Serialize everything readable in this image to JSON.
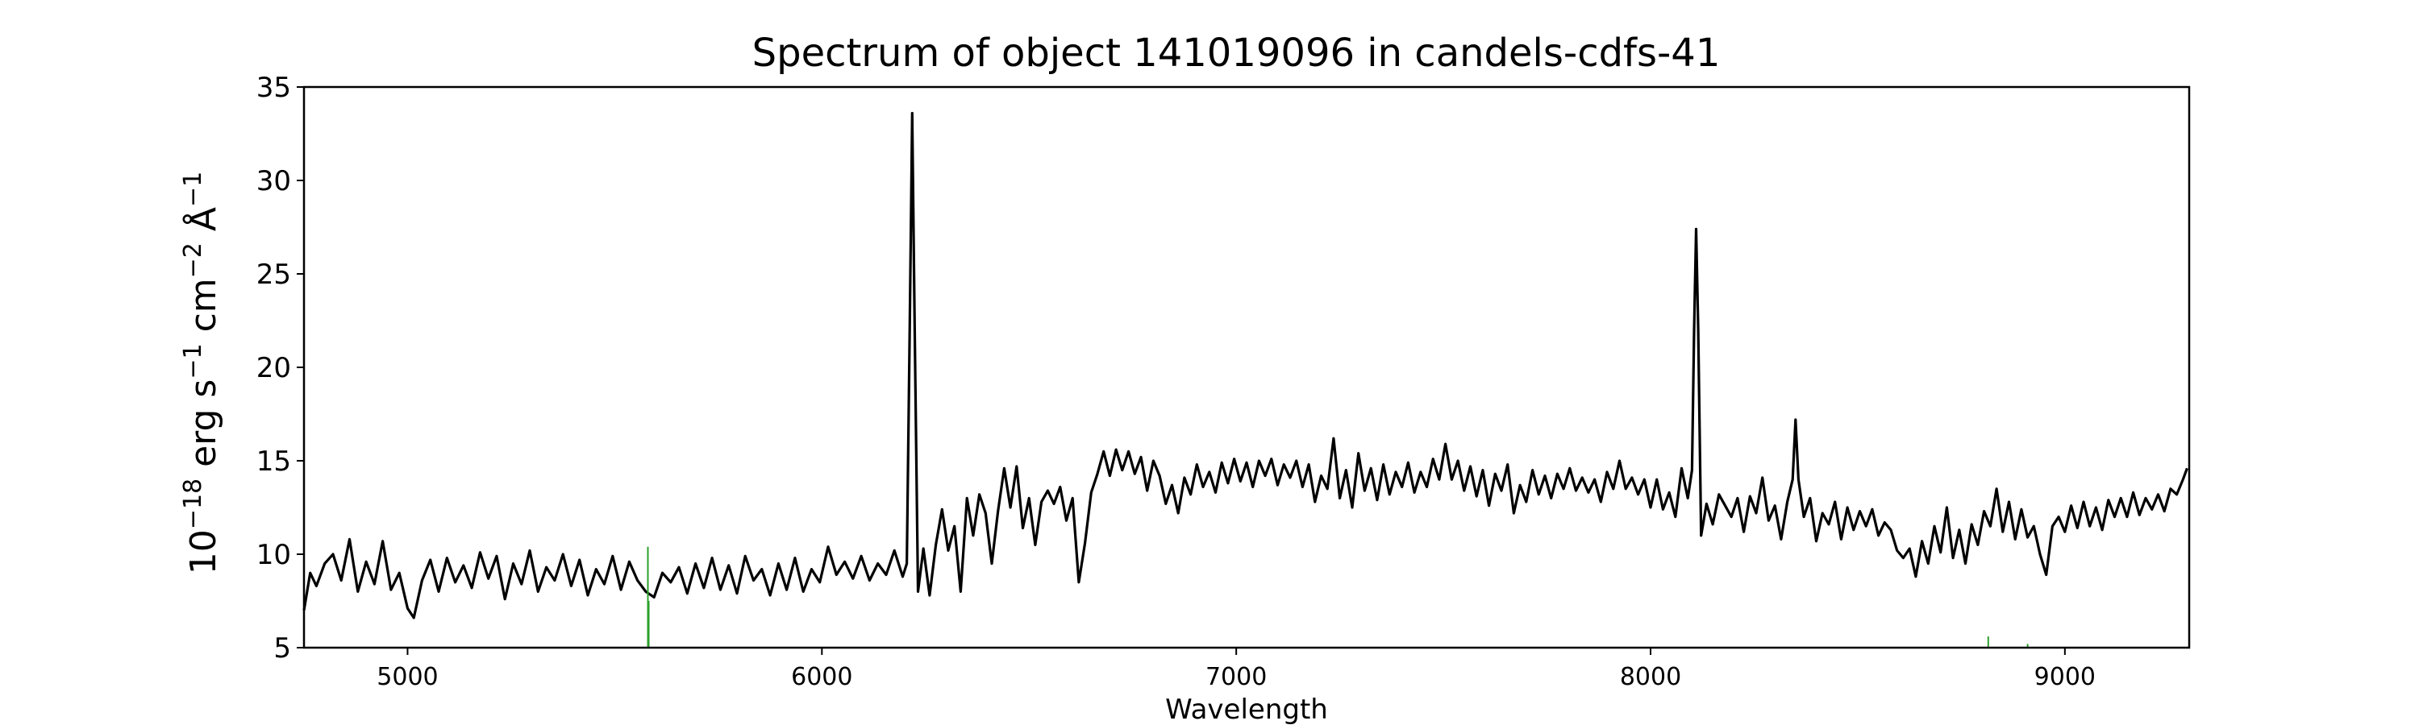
{
  "chart_data": {
    "type": "line",
    "title": "Spectrum of object 141019096 in candels-cdfs-41",
    "xlabel": "Wavelength",
    "ylabel": {
      "base": "10",
      "exp1": "−18",
      "t1": " erg s",
      "exp2": "−1",
      "t2": " cm",
      "exp3": "−2",
      "t3": " Å",
      "exp4": "−1"
    },
    "xlim": [
      4750,
      9300
    ],
    "ylim": [
      5,
      35
    ],
    "xticks": [
      5000,
      6000,
      7000,
      8000,
      9000
    ],
    "xtick_labels": [
      "5000",
      "6000",
      "7000",
      "8000",
      "9000"
    ],
    "yticks": [
      5,
      10,
      15,
      20,
      25,
      30,
      35
    ],
    "ytick_labels": [
      "5",
      "10",
      "15",
      "20",
      "25",
      "30",
      "35"
    ],
    "grid": false,
    "colors": {
      "spectrum": "#000000",
      "sky_lines": "#2ca02c"
    },
    "series": [
      {
        "color": "#000000",
        "points": [
          [
            4750,
            7.0
          ],
          [
            4765,
            9.0
          ],
          [
            4780,
            8.3
          ],
          [
            4800,
            9.5
          ],
          [
            4820,
            10.0
          ],
          [
            4840,
            8.6
          ],
          [
            4860,
            10.8
          ],
          [
            4880,
            8.0
          ],
          [
            4900,
            9.6
          ],
          [
            4920,
            8.4
          ],
          [
            4940,
            10.7
          ],
          [
            4960,
            8.1
          ],
          [
            4980,
            9.0
          ],
          [
            5000,
            7.1
          ],
          [
            5015,
            6.6
          ],
          [
            5035,
            8.6
          ],
          [
            5055,
            9.7
          ],
          [
            5075,
            8.0
          ],
          [
            5095,
            9.8
          ],
          [
            5115,
            8.5
          ],
          [
            5135,
            9.4
          ],
          [
            5155,
            8.2
          ],
          [
            5175,
            10.1
          ],
          [
            5195,
            8.7
          ],
          [
            5215,
            9.9
          ],
          [
            5235,
            7.6
          ],
          [
            5255,
            9.5
          ],
          [
            5275,
            8.4
          ],
          [
            5295,
            10.2
          ],
          [
            5315,
            8.0
          ],
          [
            5335,
            9.3
          ],
          [
            5355,
            8.6
          ],
          [
            5375,
            10.0
          ],
          [
            5395,
            8.3
          ],
          [
            5415,
            9.7
          ],
          [
            5435,
            7.8
          ],
          [
            5455,
            9.2
          ],
          [
            5475,
            8.4
          ],
          [
            5495,
            9.9
          ],
          [
            5515,
            8.1
          ],
          [
            5535,
            9.6
          ],
          [
            5555,
            8.6
          ],
          [
            5575,
            8.0
          ],
          [
            5595,
            7.7
          ],
          [
            5615,
            9.0
          ],
          [
            5635,
            8.5
          ],
          [
            5655,
            9.3
          ],
          [
            5675,
            7.9
          ],
          [
            5695,
            9.5
          ],
          [
            5715,
            8.2
          ],
          [
            5735,
            9.8
          ],
          [
            5755,
            8.1
          ],
          [
            5775,
            9.4
          ],
          [
            5795,
            7.9
          ],
          [
            5815,
            9.9
          ],
          [
            5835,
            8.6
          ],
          [
            5855,
            9.2
          ],
          [
            5875,
            7.8
          ],
          [
            5895,
            9.5
          ],
          [
            5915,
            8.1
          ],
          [
            5935,
            9.8
          ],
          [
            5955,
            8.0
          ],
          [
            5975,
            9.2
          ],
          [
            5995,
            8.5
          ],
          [
            6015,
            10.4
          ],
          [
            6035,
            8.9
          ],
          [
            6055,
            9.6
          ],
          [
            6075,
            8.7
          ],
          [
            6095,
            9.9
          ],
          [
            6115,
            8.6
          ],
          [
            6135,
            9.5
          ],
          [
            6155,
            8.9
          ],
          [
            6175,
            10.2
          ],
          [
            6195,
            8.8
          ],
          [
            6205,
            9.5
          ],
          [
            6212,
            22.0
          ],
          [
            6218,
            33.6
          ],
          [
            6224,
            22.0
          ],
          [
            6232,
            8.0
          ],
          [
            6245,
            10.3
          ],
          [
            6260,
            7.8
          ],
          [
            6275,
            10.5
          ],
          [
            6290,
            12.4
          ],
          [
            6305,
            10.2
          ],
          [
            6320,
            11.5
          ],
          [
            6335,
            8.0
          ],
          [
            6350,
            13.0
          ],
          [
            6365,
            11.0
          ],
          [
            6380,
            13.2
          ],
          [
            6395,
            12.2
          ],
          [
            6410,
            9.5
          ],
          [
            6425,
            12.3
          ],
          [
            6440,
            14.6
          ],
          [
            6455,
            12.5
          ],
          [
            6470,
            14.7
          ],
          [
            6485,
            11.4
          ],
          [
            6500,
            13.0
          ],
          [
            6515,
            10.5
          ],
          [
            6530,
            12.8
          ],
          [
            6545,
            13.4
          ],
          [
            6560,
            12.7
          ],
          [
            6575,
            13.6
          ],
          [
            6590,
            11.8
          ],
          [
            6605,
            13.0
          ],
          [
            6620,
            8.5
          ],
          [
            6635,
            10.6
          ],
          [
            6650,
            13.3
          ],
          [
            6665,
            14.3
          ],
          [
            6680,
            15.5
          ],
          [
            6695,
            14.2
          ],
          [
            6710,
            15.6
          ],
          [
            6725,
            14.5
          ],
          [
            6740,
            15.5
          ],
          [
            6755,
            14.3
          ],
          [
            6770,
            15.2
          ],
          [
            6785,
            13.4
          ],
          [
            6800,
            15.0
          ],
          [
            6815,
            14.2
          ],
          [
            6830,
            12.7
          ],
          [
            6845,
            13.7
          ],
          [
            6860,
            12.2
          ],
          [
            6875,
            14.1
          ],
          [
            6890,
            13.2
          ],
          [
            6905,
            14.8
          ],
          [
            6920,
            13.6
          ],
          [
            6935,
            14.4
          ],
          [
            6950,
            13.3
          ],
          [
            6965,
            14.9
          ],
          [
            6980,
            13.8
          ],
          [
            6995,
            15.1
          ],
          [
            7010,
            13.9
          ],
          [
            7025,
            14.9
          ],
          [
            7040,
            13.6
          ],
          [
            7055,
            15.0
          ],
          [
            7070,
            14.2
          ],
          [
            7085,
            15.1
          ],
          [
            7100,
            13.7
          ],
          [
            7115,
            14.8
          ],
          [
            7130,
            14.1
          ],
          [
            7145,
            15.0
          ],
          [
            7160,
            13.6
          ],
          [
            7175,
            14.8
          ],
          [
            7190,
            12.8
          ],
          [
            7205,
            14.2
          ],
          [
            7220,
            13.5
          ],
          [
            7235,
            16.2
          ],
          [
            7250,
            13.0
          ],
          [
            7265,
            14.5
          ],
          [
            7280,
            12.5
          ],
          [
            7295,
            15.4
          ],
          [
            7310,
            13.4
          ],
          [
            7325,
            14.6
          ],
          [
            7340,
            12.9
          ],
          [
            7355,
            14.8
          ],
          [
            7370,
            13.2
          ],
          [
            7385,
            14.4
          ],
          [
            7400,
            13.6
          ],
          [
            7415,
            14.9
          ],
          [
            7430,
            13.3
          ],
          [
            7445,
            14.4
          ],
          [
            7460,
            13.6
          ],
          [
            7475,
            15.1
          ],
          [
            7490,
            14.0
          ],
          [
            7505,
            15.9
          ],
          [
            7520,
            14.0
          ],
          [
            7535,
            15.0
          ],
          [
            7550,
            13.4
          ],
          [
            7565,
            14.7
          ],
          [
            7580,
            13.1
          ],
          [
            7595,
            14.5
          ],
          [
            7610,
            12.6
          ],
          [
            7625,
            14.3
          ],
          [
            7640,
            13.4
          ],
          [
            7655,
            14.8
          ],
          [
            7670,
            12.2
          ],
          [
            7685,
            13.7
          ],
          [
            7700,
            12.8
          ],
          [
            7715,
            14.5
          ],
          [
            7730,
            13.2
          ],
          [
            7745,
            14.2
          ],
          [
            7760,
            13.0
          ],
          [
            7775,
            14.3
          ],
          [
            7790,
            13.5
          ],
          [
            7805,
            14.6
          ],
          [
            7820,
            13.4
          ],
          [
            7835,
            14.1
          ],
          [
            7850,
            13.3
          ],
          [
            7865,
            14.0
          ],
          [
            7880,
            12.8
          ],
          [
            7895,
            14.4
          ],
          [
            7910,
            13.5
          ],
          [
            7925,
            15.0
          ],
          [
            7940,
            13.5
          ],
          [
            7955,
            14.1
          ],
          [
            7970,
            13.2
          ],
          [
            7985,
            14.0
          ],
          [
            8000,
            12.5
          ],
          [
            8015,
            14.0
          ],
          [
            8030,
            12.4
          ],
          [
            8045,
            13.3
          ],
          [
            8060,
            12.0
          ],
          [
            8075,
            14.6
          ],
          [
            8090,
            13.0
          ],
          [
            8100,
            14.5
          ],
          [
            8105,
            22.0
          ],
          [
            8110,
            27.4
          ],
          [
            8115,
            22.0
          ],
          [
            8122,
            11.0
          ],
          [
            8135,
            12.7
          ],
          [
            8150,
            11.6
          ],
          [
            8165,
            13.2
          ],
          [
            8180,
            12.6
          ],
          [
            8195,
            12.0
          ],
          [
            8210,
            13.0
          ],
          [
            8225,
            11.2
          ],
          [
            8240,
            13.1
          ],
          [
            8255,
            12.2
          ],
          [
            8270,
            14.1
          ],
          [
            8285,
            11.8
          ],
          [
            8300,
            12.6
          ],
          [
            8315,
            10.8
          ],
          [
            8330,
            12.8
          ],
          [
            8343,
            14.0
          ],
          [
            8350,
            17.2
          ],
          [
            8357,
            14.0
          ],
          [
            8370,
            12.0
          ],
          [
            8385,
            13.0
          ],
          [
            8400,
            10.7
          ],
          [
            8415,
            12.2
          ],
          [
            8430,
            11.6
          ],
          [
            8445,
            12.8
          ],
          [
            8460,
            10.8
          ],
          [
            8475,
            12.5
          ],
          [
            8490,
            11.3
          ],
          [
            8505,
            12.3
          ],
          [
            8520,
            11.5
          ],
          [
            8535,
            12.4
          ],
          [
            8550,
            11.0
          ],
          [
            8565,
            11.7
          ],
          [
            8580,
            11.3
          ],
          [
            8595,
            10.2
          ],
          [
            8610,
            9.8
          ],
          [
            8625,
            10.3
          ],
          [
            8640,
            8.8
          ],
          [
            8655,
            10.7
          ],
          [
            8670,
            9.5
          ],
          [
            8685,
            11.5
          ],
          [
            8700,
            10.1
          ],
          [
            8715,
            12.5
          ],
          [
            8730,
            9.8
          ],
          [
            8745,
            11.3
          ],
          [
            8760,
            9.5
          ],
          [
            8775,
            11.6
          ],
          [
            8790,
            10.5
          ],
          [
            8805,
            12.3
          ],
          [
            8820,
            11.5
          ],
          [
            8835,
            13.5
          ],
          [
            8850,
            11.2
          ],
          [
            8865,
            12.8
          ],
          [
            8880,
            10.8
          ],
          [
            8895,
            12.4
          ],
          [
            8910,
            10.9
          ],
          [
            8925,
            11.5
          ],
          [
            8940,
            10.0
          ],
          [
            8955,
            8.9
          ],
          [
            8970,
            11.5
          ],
          [
            8985,
            12.0
          ],
          [
            9000,
            11.2
          ],
          [
            9015,
            12.6
          ],
          [
            9030,
            11.4
          ],
          [
            9045,
            12.8
          ],
          [
            9060,
            11.5
          ],
          [
            9075,
            12.5
          ],
          [
            9090,
            11.3
          ],
          [
            9105,
            12.9
          ],
          [
            9120,
            12.0
          ],
          [
            9135,
            13.0
          ],
          [
            9150,
            12.0
          ],
          [
            9165,
            13.3
          ],
          [
            9180,
            12.1
          ],
          [
            9195,
            13.0
          ],
          [
            9210,
            12.4
          ],
          [
            9225,
            13.2
          ],
          [
            9240,
            12.3
          ],
          [
            9255,
            13.5
          ],
          [
            9270,
            13.2
          ],
          [
            9285,
            14.0
          ],
          [
            9295,
            14.6
          ]
        ]
      },
      {
        "color": "#2ca02c",
        "segments": [
          [
            5580,
            5.0,
            10.4
          ],
          [
            5582,
            5.0,
            7.5
          ],
          [
            8815,
            5.0,
            5.6
          ],
          [
            8910,
            5.0,
            5.2
          ]
        ]
      }
    ]
  }
}
